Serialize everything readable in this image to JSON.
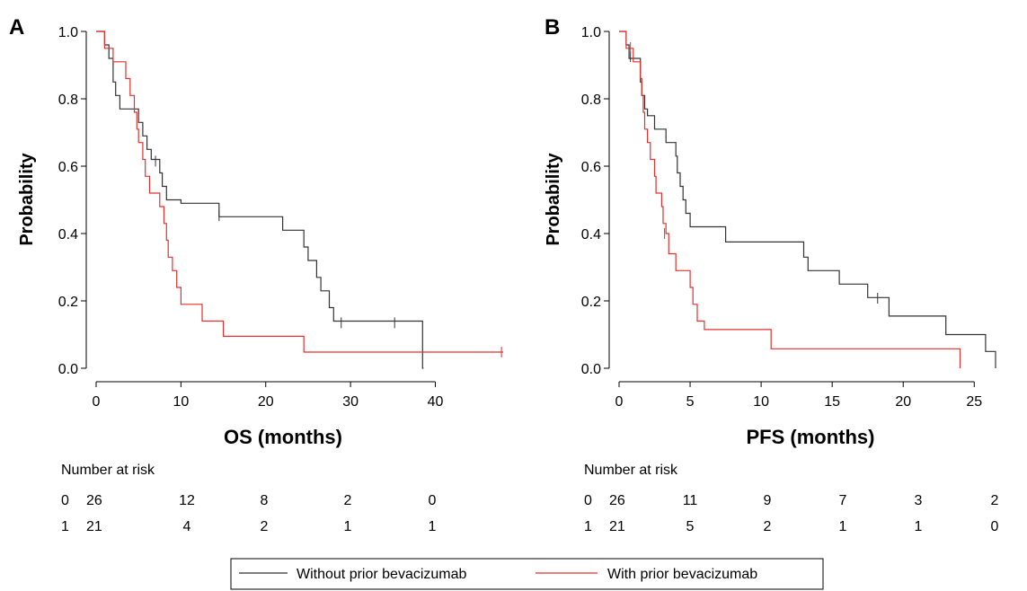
{
  "chart_data": [
    {
      "type": "line",
      "panel_label": "A",
      "xlabel": "OS (months)",
      "ylabel": "Probability",
      "xlim": [
        0,
        48
      ],
      "ylim": [
        0,
        1.0
      ],
      "xticks": [
        0,
        10,
        20,
        30,
        40
      ],
      "xtick_labels": [
        "0",
        "10",
        "20",
        "30",
        "40"
      ],
      "yticks": [
        0.0,
        0.2,
        0.4,
        0.6,
        0.8,
        1.0
      ],
      "ytick_labels": [
        "0.0",
        "0.2",
        "0.4",
        "0.6",
        "0.8",
        "1.0"
      ],
      "series": [
        {
          "name": "Without prior bevacizumab",
          "color": "#333333",
          "steps": [
            [
              0,
              1.0
            ],
            [
              1.0,
              0.96
            ],
            [
              1.5,
              0.92
            ],
            [
              2.0,
              0.85
            ],
            [
              2.3,
              0.81
            ],
            [
              2.8,
              0.77
            ],
            [
              5.0,
              0.73
            ],
            [
              5.5,
              0.69
            ],
            [
              6.0,
              0.65
            ],
            [
              6.5,
              0.62
            ],
            [
              7.5,
              0.58
            ],
            [
              7.8,
              0.54
            ],
            [
              8.3,
              0.5
            ],
            [
              10.0,
              0.49
            ],
            [
              12.0,
              0.49
            ],
            [
              14.5,
              0.45
            ],
            [
              22.0,
              0.41
            ],
            [
              24.5,
              0.36
            ],
            [
              25.0,
              0.32
            ],
            [
              26.0,
              0.27
            ],
            [
              26.5,
              0.23
            ],
            [
              27.5,
              0.18
            ],
            [
              28.0,
              0.14
            ],
            [
              38.5,
              0.0
            ]
          ],
          "censored": [
            [
              7.0,
              0.615
            ],
            [
              14.5,
              0.453
            ],
            [
              28.9,
              0.135
            ],
            [
              35.2,
              0.135
            ]
          ],
          "end_x": 38.6
        },
        {
          "name": "With prior bevacizumab",
          "color": "#e0312f",
          "steps": [
            [
              0,
              1.0
            ],
            [
              1.0,
              0.95
            ],
            [
              2.0,
              0.91
            ],
            [
              3.5,
              0.86
            ],
            [
              4.0,
              0.81
            ],
            [
              4.5,
              0.76
            ],
            [
              4.8,
              0.71
            ],
            [
              5.0,
              0.67
            ],
            [
              5.5,
              0.62
            ],
            [
              5.8,
              0.57
            ],
            [
              6.3,
              0.52
            ],
            [
              7.5,
              0.48
            ],
            [
              8.0,
              0.43
            ],
            [
              8.3,
              0.38
            ],
            [
              8.5,
              0.33
            ],
            [
              9.0,
              0.29
            ],
            [
              9.5,
              0.24
            ],
            [
              10.0,
              0.19
            ],
            [
              12.5,
              0.14
            ],
            [
              15.0,
              0.095
            ],
            [
              24.5,
              0.048
            ]
          ],
          "censored": [
            [
              47.8,
              0.048
            ]
          ],
          "end_x": 48
        }
      ],
      "risk_table": {
        "title": "Number at risk",
        "rows": [
          {
            "label": "0",
            "values": [
              "26",
              "12",
              "8",
              "2",
              "0"
            ]
          },
          {
            "label": "1",
            "values": [
              "21",
              "4",
              "2",
              "1",
              "1"
            ]
          }
        ]
      }
    },
    {
      "type": "line",
      "panel_label": "B",
      "xlabel": "PFS (months)",
      "ylabel": "Probability",
      "xlim": [
        0,
        26.5
      ],
      "ylim": [
        0,
        1.0
      ],
      "xticks": [
        0,
        5,
        10,
        15,
        20,
        25
      ],
      "xtick_labels": [
        "0",
        "5",
        "10",
        "15",
        "20",
        "25"
      ],
      "yticks": [
        0.0,
        0.2,
        0.4,
        0.6,
        0.8,
        1.0
      ],
      "ytick_labels": [
        "0.0",
        "0.2",
        "0.4",
        "0.6",
        "0.8",
        "1.0"
      ],
      "series": [
        {
          "name": "Without prior bevacizumab",
          "color": "#333333",
          "steps": [
            [
              0,
              1.0
            ],
            [
              0.5,
              0.96
            ],
            [
              0.7,
              0.92
            ],
            [
              1.5,
              0.85
            ],
            [
              1.6,
              0.81
            ],
            [
              1.8,
              0.77
            ],
            [
              2.0,
              0.75
            ],
            [
              2.5,
              0.71
            ],
            [
              3.3,
              0.67
            ],
            [
              4.0,
              0.63
            ],
            [
              4.1,
              0.58
            ],
            [
              4.3,
              0.54
            ],
            [
              4.5,
              0.5
            ],
            [
              4.7,
              0.46
            ],
            [
              5.0,
              0.42
            ],
            [
              7.5,
              0.375
            ],
            [
              13.0,
              0.33
            ],
            [
              13.3,
              0.29
            ],
            [
              15.5,
              0.25
            ],
            [
              17.5,
              0.21
            ],
            [
              19.0,
              0.155
            ],
            [
              23.0,
              0.1
            ],
            [
              25.8,
              0.05
            ],
            [
              26.5,
              0.0
            ]
          ],
          "censored": [
            [
              0.8,
              0.925
            ],
            [
              18.2,
              0.208
            ]
          ],
          "end_x": 26.5
        },
        {
          "name": "With prior bevacizumab",
          "color": "#e0312f",
          "steps": [
            [
              0,
              1.0
            ],
            [
              0.5,
              0.95
            ],
            [
              1.0,
              0.91
            ],
            [
              1.5,
              0.86
            ],
            [
              1.6,
              0.81
            ],
            [
              1.7,
              0.76
            ],
            [
              1.8,
              0.71
            ],
            [
              2.0,
              0.67
            ],
            [
              2.2,
              0.62
            ],
            [
              2.5,
              0.57
            ],
            [
              2.6,
              0.52
            ],
            [
              3.0,
              0.48
            ],
            [
              3.1,
              0.43
            ],
            [
              3.3,
              0.4
            ],
            [
              3.5,
              0.34
            ],
            [
              4.0,
              0.29
            ],
            [
              5.0,
              0.24
            ],
            [
              5.2,
              0.19
            ],
            [
              5.5,
              0.14
            ],
            [
              6.0,
              0.115
            ],
            [
              10.7,
              0.058
            ],
            [
              24.0,
              0.0
            ]
          ],
          "censored": [
            [
              0.8,
              0.952
            ],
            [
              3.2,
              0.4
            ]
          ],
          "end_x": 24.0
        }
      ],
      "risk_table": {
        "title": "Number at risk",
        "rows": [
          {
            "label": "0",
            "values": [
              "26",
              "11",
              "9",
              "7",
              "3",
              "2"
            ]
          },
          {
            "label": "1",
            "values": [
              "21",
              "5",
              "2",
              "1",
              "1",
              "0"
            ]
          }
        ]
      }
    }
  ],
  "legend": {
    "items": [
      {
        "label": "Without prior bevacizumab",
        "color": "#333333"
      },
      {
        "label": "With prior bevacizumab",
        "color": "#e0312f"
      }
    ]
  }
}
